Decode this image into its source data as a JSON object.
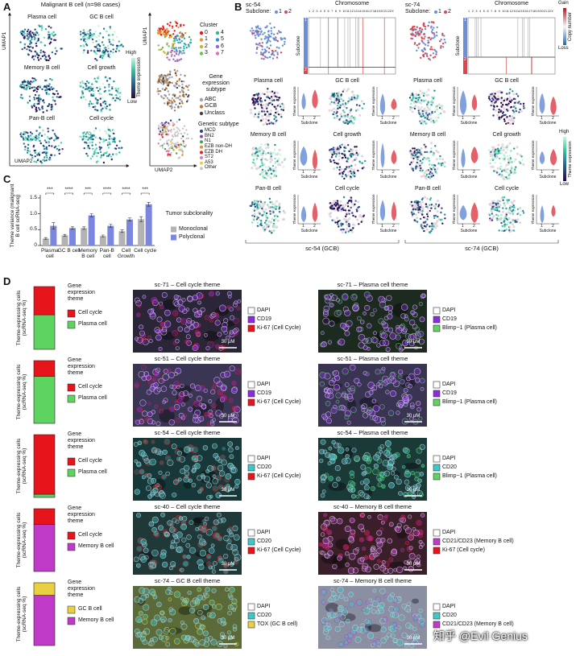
{
  "panel_a": {
    "label": "A",
    "title": "Malignant B cell (n=98 cases)",
    "themes": [
      "Plasma cell",
      "GC B cell",
      "Memory B cell",
      "Cell growth",
      "Pan-B cell",
      "Cell cycle"
    ],
    "colorbar": {
      "high": "High",
      "low": "Low",
      "title": "Theme expression"
    },
    "axis_y": "UMAP1",
    "axis_x": "UMAP2",
    "legends": [
      {
        "title": "Cluster",
        "items": [
          {
            "name": "0",
            "color": "#e41a1c"
          },
          {
            "name": "1",
            "color": "#e6962e"
          },
          {
            "name": "2",
            "color": "#c7b42c"
          },
          {
            "name": "3",
            "color": "#6cbf4a"
          },
          {
            "name": "4",
            "color": "#2eb89a"
          },
          {
            "name": "5",
            "color": "#2e8fd6"
          },
          {
            "name": "6",
            "color": "#8c6bd6"
          },
          {
            "name": "7",
            "color": "#e46fb7"
          }
        ]
      },
      {
        "title": "Gene expression subtype",
        "items": [
          {
            "name": "ABC",
            "color": "#9aa3b5"
          },
          {
            "name": "GCB",
            "color": "#b8793a"
          },
          {
            "name": "Unclass",
            "color": "#444444"
          }
        ]
      },
      {
        "title": "Genetic subtype",
        "items": [
          {
            "name": "MCD",
            "color": "#1f3d8c"
          },
          {
            "name": "BN2",
            "color": "#8e44ad"
          },
          {
            "name": "N1",
            "color": "#3aa845"
          },
          {
            "name": "EZB non-DH",
            "color": "#f08a24"
          },
          {
            "name": "EZB DH",
            "color": "#d62728"
          },
          {
            "name": "ST2",
            "color": "#e377c2"
          },
          {
            "name": "A53",
            "color": "#e8d22c"
          },
          {
            "name": "Other",
            "color": "#c8c8c8"
          }
        ]
      }
    ]
  },
  "panel_b": {
    "label": "B",
    "samples": [
      {
        "name": "sc-54",
        "footer": "sc-54 (GCB)"
      },
      {
        "name": "sc-74",
        "footer": "sc-74 (GCB)"
      }
    ],
    "subclone_title": "Subclone:",
    "subclones": [
      {
        "name": "1",
        "color": "#6a8fd8"
      },
      {
        "name": "2",
        "color": "#e0454f"
      }
    ],
    "heatmap_title": "Chromosome",
    "chromosomes": [
      "1",
      "2",
      "3",
      "4",
      "5",
      "6",
      "7",
      "8",
      "9",
      "10",
      "11",
      "12",
      "13",
      "14",
      "15",
      "16",
      "17",
      "18",
      "19",
      "20",
      "21",
      "22",
      "X"
    ],
    "subclone_axis": "Subclone",
    "copy_number": {
      "title": "Copy number",
      "high": "Gain",
      "low": "Loss"
    },
    "themes": [
      "Plasma cell",
      "GC B cell",
      "Memory B cell",
      "Cell growth",
      "Pan-B cell",
      "Cell cycle"
    ],
    "violin_y": "Theme expression",
    "violin_x": "Subclone",
    "colorbar": {
      "high": "High",
      "low": "Low",
      "title": "Theme expression"
    }
  },
  "chart_data": [
    {
      "type": "bar",
      "label": "C",
      "categories": [
        "Plasma cell",
        "GC B cell",
        "Memory B cell",
        "Pan-B cell",
        "Cell Growth",
        "Cell cycle"
      ],
      "series": [
        {
          "name": "Monoclonal",
          "color": "#b3b3b3",
          "values": [
            0.22,
            0.32,
            0.55,
            0.3,
            0.45,
            0.83
          ],
          "errors": [
            0.03,
            0.03,
            0.04,
            0.03,
            0.04,
            0.08
          ]
        },
        {
          "name": "Polyclonal",
          "color": "#7b86e0",
          "values": [
            0.62,
            0.55,
            0.95,
            0.62,
            0.82,
            1.3
          ],
          "errors": [
            0.1,
            0.04,
            0.05,
            0.05,
            0.05,
            0.06
          ]
        }
      ],
      "y_label": "Theme variance (malignant B cell scRNA-seq)",
      "ylim": [
        0,
        1.6
      ],
      "yticks": [
        0,
        0.5,
        {
          "value": 1,
          "label": "1.0"
        },
        1.5
      ],
      "annotations": [
        "***",
        "****",
        "***",
        "****",
        "****",
        "***"
      ],
      "legend_title": "Tumor subclonality"
    },
    {
      "type": "stacked_bar",
      "y_label": "Theme-expressing cells (scRNA-seq %)",
      "legend_title": "Gene expression theme",
      "ylim": [
        0,
        100
      ],
      "series": [
        {
          "name": "Cell cycle",
          "color": "#e8141c",
          "values": [
            45
          ]
        },
        {
          "name": "Plasma cell",
          "color": "#5fd35f",
          "values": [
            55
          ]
        }
      ]
    },
    {
      "type": "stacked_bar",
      "y_label": "Theme-expressing cells (scRNA-seq %)",
      "legend_title": "Gene expression theme",
      "ylim": [
        0,
        100
      ],
      "series": [
        {
          "name": "Cell cycle",
          "color": "#e8141c",
          "values": [
            25
          ]
        },
        {
          "name": "Plasma cell",
          "color": "#5fd35f",
          "values": [
            75
          ]
        }
      ]
    },
    {
      "type": "stacked_bar",
      "y_label": "Theme-expressing cells (scRNA-seq %)",
      "legend_title": "Gene expression theme",
      "ylim": [
        0,
        100
      ],
      "series": [
        {
          "name": "Cell cycle",
          "color": "#e8141c",
          "values": [
            95
          ]
        },
        {
          "name": "Plasma cell",
          "color": "#5fd35f",
          "values": [
            5
          ]
        }
      ]
    },
    {
      "type": "stacked_bar",
      "y_label": "Theme-expressing cells (scRNA-seq %)",
      "legend_title": "Gene expression theme",
      "ylim": [
        0,
        100
      ],
      "series": [
        {
          "name": "Cell cycle",
          "color": "#e8141c",
          "values": [
            25
          ]
        },
        {
          "name": "Memory B cell",
          "color": "#c03ac8",
          "values": [
            75
          ]
        }
      ]
    },
    {
      "type": "stacked_bar",
      "y_label": "Theme-expressing cells (scRNA-seq %)",
      "legend_title": "Gene expression theme",
      "ylim": [
        0,
        100
      ],
      "series": [
        {
          "name": "GC B cell",
          "color": "#e8d040",
          "values": [
            20
          ]
        },
        {
          "name": "Memory B cell",
          "color": "#c03ac8",
          "values": [
            80
          ]
        }
      ]
    }
  ],
  "panel_d": {
    "label": "D",
    "scale_label": "30 μM",
    "rows": [
      {
        "images": [
          {
            "title": "sc-71 – Cell cycle theme",
            "markers": [
              {
                "name": "DAPI",
                "color": "#ffffff"
              },
              {
                "name": "CD19",
                "color": "#8a2be2"
              },
              {
                "name": "Ki-67 (Cell Cycle)",
                "color": "#e8141c"
              }
            ]
          },
          {
            "title": "sc-71 – Plasma cell theme",
            "markers": [
              {
                "name": "DAPI",
                "color": "#ffffff"
              },
              {
                "name": "CD19",
                "color": "#8a2be2"
              },
              {
                "name": "Blimp−1 (Plasma cell)",
                "color": "#5fd35f"
              }
            ]
          }
        ]
      },
      {
        "images": [
          {
            "title": "sc-51 – Cell cycle theme",
            "markers": [
              {
                "name": "DAPI",
                "color": "#ffffff"
              },
              {
                "name": "CD19",
                "color": "#8a2be2"
              },
              {
                "name": "Ki-67 (Cell Cycle)",
                "color": "#e8141c"
              }
            ]
          },
          {
            "title": "sc-51 – Plasma cell theme",
            "markers": [
              {
                "name": "DAPI",
                "color": "#ffffff"
              },
              {
                "name": "CD19",
                "color": "#8a2be2"
              },
              {
                "name": "Blimp−1 (Plasma cell)",
                "color": "#5fd35f"
              }
            ]
          }
        ]
      },
      {
        "images": [
          {
            "title": "sc-54 – Cell cycle theme",
            "markers": [
              {
                "name": "DAPI",
                "color": "#ffffff"
              },
              {
                "name": "CD20",
                "color": "#3ec8c8"
              },
              {
                "name": "Ki-67 (Cell Cycle)",
                "color": "#e8141c"
              }
            ]
          },
          {
            "title": "sc-54 – Plasma cell theme",
            "markers": [
              {
                "name": "DAPI",
                "color": "#ffffff"
              },
              {
                "name": "CD20",
                "color": "#3ec8c8"
              },
              {
                "name": "Blimp−1 (Plasma cell)",
                "color": "#5fd35f"
              }
            ]
          }
        ]
      },
      {
        "images": [
          {
            "title": "sc-40 – Cell cycle theme",
            "markers": [
              {
                "name": "DAPI",
                "color": "#ffffff"
              },
              {
                "name": "CD20",
                "color": "#3ec8c8"
              },
              {
                "name": "Ki-67 (Cell Cycle)",
                "color": "#e8141c"
              }
            ]
          },
          {
            "title": "sc-40 – Memory B cell theme",
            "markers": [
              {
                "name": "DAPI",
                "color": "#ffffff"
              },
              {
                "name": "CD21/CD23 (Memory B cell)",
                "color": "#c03ac8"
              },
              {
                "name": "Ki-67 (Cell cycle)",
                "color": "#e8141c"
              }
            ]
          }
        ]
      },
      {
        "images": [
          {
            "title": "sc-74 – GC B cell theme",
            "markers": [
              {
                "name": "DAPI",
                "color": "#ffffff"
              },
              {
                "name": "CD20",
                "color": "#3ec8c8"
              },
              {
                "name": "TOX (GC B cell)",
                "color": "#e8d040"
              }
            ]
          },
          {
            "title": "sc-74 – Memory B cell theme",
            "markers": [
              {
                "name": "DAPI",
                "color": "#ffffff"
              },
              {
                "name": "CD20",
                "color": "#3ec8c8"
              },
              {
                "name": "CD21/CD23 (Memory B cell)",
                "color": "#c03ac8"
              }
            ]
          }
        ]
      }
    ]
  },
  "watermark": "知乎 @Evil Genius"
}
